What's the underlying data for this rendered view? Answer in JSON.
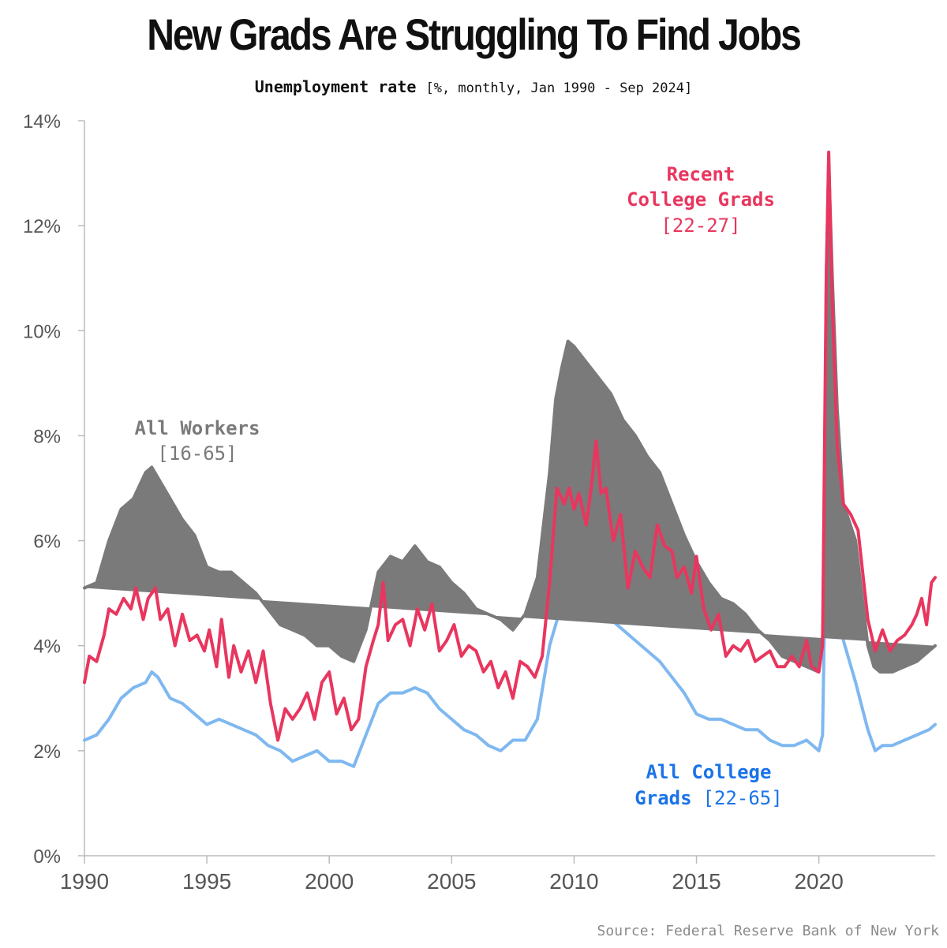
{
  "title": "New Grads Are Struggling To Find Jobs",
  "subtitle": {
    "main": "Unemployment rate",
    "detail": "[%, monthly, Jan 1990 - Sep 2024]"
  },
  "source": "Source: Federal Reserve Bank of New York",
  "chart_data": {
    "type": "line",
    "title": "New Grads Are Struggling To Find Jobs",
    "ylabel": "Unemployment rate",
    "xlabel": "",
    "xlim": [
      1990,
      2024.75
    ],
    "ylim": [
      0,
      14
    ],
    "x_ticks": [
      1990,
      1995,
      2000,
      2005,
      2010,
      2015,
      2020
    ],
    "x_tick_labels": [
      "1990",
      "1995",
      "2000",
      "2005",
      "2010",
      "2015",
      "2020"
    ],
    "y_ticks": [
      0,
      2,
      4,
      6,
      8,
      10,
      12,
      14
    ],
    "y_tick_labels": [
      "0%",
      "2%",
      "4%",
      "6%",
      "8%",
      "10%",
      "12%",
      "14%"
    ],
    "series": [
      {
        "name": "All Workers",
        "range": "[16-65]",
        "color": "#7a7a7a",
        "points": [
          [
            1990.0,
            5.1
          ],
          [
            1990.5,
            5.2
          ],
          [
            1991.0,
            6.0
          ],
          [
            1991.5,
            6.6
          ],
          [
            1992.0,
            6.8
          ],
          [
            1992.5,
            7.3
          ],
          [
            1992.75,
            7.4
          ],
          [
            1993.0,
            7.2
          ],
          [
            1993.5,
            6.8
          ],
          [
            1994.0,
            6.4
          ],
          [
            1994.5,
            6.1
          ],
          [
            1995.0,
            5.5
          ],
          [
            1995.5,
            5.4
          ],
          [
            1996.0,
            5.4
          ],
          [
            1996.5,
            5.2
          ],
          [
            1997.0,
            5.0
          ],
          [
            1997.5,
            4.7
          ],
          [
            1998.0,
            4.4
          ],
          [
            1998.5,
            4.3
          ],
          [
            1999.0,
            4.2
          ],
          [
            1999.5,
            4.0
          ],
          [
            2000.0,
            4.0
          ],
          [
            2000.5,
            3.8
          ],
          [
            2001.0,
            3.7
          ],
          [
            2001.5,
            4.3
          ],
          [
            2002.0,
            5.4
          ],
          [
            2002.5,
            5.7
          ],
          [
            2003.0,
            5.6
          ],
          [
            2003.5,
            5.9
          ],
          [
            2004.0,
            5.6
          ],
          [
            2004.5,
            5.5
          ],
          [
            2005.0,
            5.2
          ],
          [
            2005.5,
            5.0
          ],
          [
            2006.0,
            4.7
          ],
          [
            2006.5,
            4.6
          ],
          [
            2007.0,
            4.5
          ],
          [
            2007.5,
            4.3
          ],
          [
            2008.0,
            4.6
          ],
          [
            2008.5,
            5.3
          ],
          [
            2009.0,
            7.3
          ],
          [
            2009.25,
            8.7
          ],
          [
            2009.5,
            9.3
          ],
          [
            2009.75,
            9.8
          ],
          [
            2010.0,
            9.7
          ],
          [
            2010.5,
            9.4
          ],
          [
            2011.0,
            9.1
          ],
          [
            2011.5,
            8.8
          ],
          [
            2012.0,
            8.3
          ],
          [
            2012.5,
            8.0
          ],
          [
            2013.0,
            7.6
          ],
          [
            2013.5,
            7.3
          ],
          [
            2014.0,
            6.7
          ],
          [
            2014.5,
            6.1
          ],
          [
            2015.0,
            5.6
          ],
          [
            2015.5,
            5.2
          ],
          [
            2016.0,
            4.9
          ],
          [
            2016.5,
            4.8
          ],
          [
            2017.0,
            4.6
          ],
          [
            2017.5,
            4.3
          ],
          [
            2018.0,
            4.1
          ],
          [
            2018.5,
            3.8
          ],
          [
            2019.0,
            3.7
          ],
          [
            2019.5,
            3.6
          ],
          [
            2020.0,
            3.5
          ],
          [
            2020.2,
            4.4
          ],
          [
            2020.3,
            11.0
          ],
          [
            2020.4,
            13.2
          ],
          [
            2020.55,
            11.0
          ],
          [
            2020.75,
            8.5
          ],
          [
            2021.0,
            6.7
          ],
          [
            2021.5,
            6.0
          ],
          [
            2022.0,
            4.0
          ],
          [
            2022.25,
            3.6
          ],
          [
            2022.5,
            3.5
          ],
          [
            2023.0,
            3.5
          ],
          [
            2023.5,
            3.6
          ],
          [
            2024.0,
            3.7
          ],
          [
            2024.5,
            3.9
          ],
          [
            2024.75,
            4.0
          ]
        ]
      },
      {
        "name": "Recent College Grads",
        "range": "[22-27]",
        "color": "#e8365f",
        "points": [
          [
            1990.0,
            3.3
          ],
          [
            1990.2,
            3.8
          ],
          [
            1990.5,
            3.7
          ],
          [
            1990.8,
            4.2
          ],
          [
            1991.0,
            4.7
          ],
          [
            1991.3,
            4.6
          ],
          [
            1991.6,
            4.9
          ],
          [
            1991.9,
            4.7
          ],
          [
            1992.1,
            5.1
          ],
          [
            1992.4,
            4.5
          ],
          [
            1992.6,
            4.9
          ],
          [
            1992.9,
            5.1
          ],
          [
            1993.1,
            4.5
          ],
          [
            1993.4,
            4.7
          ],
          [
            1993.7,
            4.0
          ],
          [
            1994.0,
            4.6
          ],
          [
            1994.3,
            4.1
          ],
          [
            1994.6,
            4.2
          ],
          [
            1994.9,
            3.9
          ],
          [
            1995.1,
            4.3
          ],
          [
            1995.4,
            3.6
          ],
          [
            1995.6,
            4.5
          ],
          [
            1995.9,
            3.4
          ],
          [
            1996.1,
            4.0
          ],
          [
            1996.4,
            3.5
          ],
          [
            1996.7,
            3.9
          ],
          [
            1997.0,
            3.3
          ],
          [
            1997.3,
            3.9
          ],
          [
            1997.6,
            2.9
          ],
          [
            1997.9,
            2.2
          ],
          [
            1998.2,
            2.8
          ],
          [
            1998.5,
            2.6
          ],
          [
            1998.8,
            2.8
          ],
          [
            1999.1,
            3.1
          ],
          [
            1999.4,
            2.6
          ],
          [
            1999.7,
            3.3
          ],
          [
            2000.0,
            3.5
          ],
          [
            2000.3,
            2.7
          ],
          [
            2000.6,
            3.0
          ],
          [
            2000.9,
            2.4
          ],
          [
            2001.2,
            2.6
          ],
          [
            2001.5,
            3.6
          ],
          [
            2001.8,
            4.1
          ],
          [
            2002.0,
            4.4
          ],
          [
            2002.2,
            5.2
          ],
          [
            2002.4,
            4.1
          ],
          [
            2002.7,
            4.4
          ],
          [
            2003.0,
            4.5
          ],
          [
            2003.3,
            4.0
          ],
          [
            2003.6,
            4.7
          ],
          [
            2003.9,
            4.3
          ],
          [
            2004.2,
            4.8
          ],
          [
            2004.5,
            3.9
          ],
          [
            2004.8,
            4.1
          ],
          [
            2005.1,
            4.4
          ],
          [
            2005.4,
            3.8
          ],
          [
            2005.7,
            4.0
          ],
          [
            2006.0,
            3.9
          ],
          [
            2006.3,
            3.5
          ],
          [
            2006.6,
            3.7
          ],
          [
            2006.9,
            3.2
          ],
          [
            2007.2,
            3.5
          ],
          [
            2007.5,
            3.0
          ],
          [
            2007.8,
            3.7
          ],
          [
            2008.1,
            3.6
          ],
          [
            2008.4,
            3.4
          ],
          [
            2008.7,
            3.8
          ],
          [
            2009.0,
            5.2
          ],
          [
            2009.3,
            7.0
          ],
          [
            2009.6,
            6.7
          ],
          [
            2009.8,
            7.0
          ],
          [
            2010.0,
            6.6
          ],
          [
            2010.2,
            6.9
          ],
          [
            2010.5,
            6.3
          ],
          [
            2010.7,
            7.0
          ],
          [
            2010.9,
            7.9
          ],
          [
            2011.1,
            6.9
          ],
          [
            2011.3,
            7.0
          ],
          [
            2011.6,
            6.0
          ],
          [
            2011.9,
            6.5
          ],
          [
            2012.2,
            5.1
          ],
          [
            2012.5,
            5.8
          ],
          [
            2012.8,
            5.5
          ],
          [
            2013.1,
            5.3
          ],
          [
            2013.4,
            6.3
          ],
          [
            2013.7,
            5.9
          ],
          [
            2014.0,
            5.8
          ],
          [
            2014.2,
            5.3
          ],
          [
            2014.5,
            5.5
          ],
          [
            2014.8,
            5.0
          ],
          [
            2015.0,
            5.7
          ],
          [
            2015.3,
            4.7
          ],
          [
            2015.6,
            4.3
          ],
          [
            2015.9,
            4.6
          ],
          [
            2016.2,
            3.8
          ],
          [
            2016.5,
            4.0
          ],
          [
            2016.8,
            3.9
          ],
          [
            2017.1,
            4.1
          ],
          [
            2017.4,
            3.7
          ],
          [
            2017.7,
            3.8
          ],
          [
            2018.0,
            3.9
          ],
          [
            2018.3,
            3.6
          ],
          [
            2018.6,
            3.6
          ],
          [
            2018.9,
            3.8
          ],
          [
            2019.2,
            3.6
          ],
          [
            2019.5,
            4.1
          ],
          [
            2019.7,
            3.6
          ],
          [
            2020.0,
            3.5
          ],
          [
            2020.15,
            4.0
          ],
          [
            2020.3,
            11.0
          ],
          [
            2020.4,
            13.4
          ],
          [
            2020.55,
            10.5
          ],
          [
            2020.75,
            7.8
          ],
          [
            2021.0,
            6.7
          ],
          [
            2021.3,
            6.5
          ],
          [
            2021.6,
            6.2
          ],
          [
            2022.0,
            4.5
          ],
          [
            2022.3,
            3.9
          ],
          [
            2022.6,
            4.3
          ],
          [
            2022.9,
            3.9
          ],
          [
            2023.2,
            4.1
          ],
          [
            2023.5,
            4.2
          ],
          [
            2023.8,
            4.4
          ],
          [
            2024.0,
            4.6
          ],
          [
            2024.2,
            4.9
          ],
          [
            2024.4,
            4.4
          ],
          [
            2024.6,
            5.2
          ],
          [
            2024.75,
            5.3
          ]
        ]
      },
      {
        "name": "All College Grads",
        "range": "[22-65]",
        "color": "#7fb8f0",
        "points": [
          [
            1990.0,
            2.2
          ],
          [
            1990.5,
            2.3
          ],
          [
            1991.0,
            2.6
          ],
          [
            1991.5,
            3.0
          ],
          [
            1992.0,
            3.2
          ],
          [
            1992.5,
            3.3
          ],
          [
            1992.75,
            3.5
          ],
          [
            1993.0,
            3.4
          ],
          [
            1993.5,
            3.0
          ],
          [
            1994.0,
            2.9
          ],
          [
            1994.5,
            2.7
          ],
          [
            1995.0,
            2.5
          ],
          [
            1995.5,
            2.6
          ],
          [
            1996.0,
            2.5
          ],
          [
            1996.5,
            2.4
          ],
          [
            1997.0,
            2.3
          ],
          [
            1997.5,
            2.1
          ],
          [
            1998.0,
            2.0
          ],
          [
            1998.5,
            1.8
          ],
          [
            1999.0,
            1.9
          ],
          [
            1999.5,
            2.0
          ],
          [
            2000.0,
            1.8
          ],
          [
            2000.5,
            1.8
          ],
          [
            2001.0,
            1.7
          ],
          [
            2001.5,
            2.3
          ],
          [
            2002.0,
            2.9
          ],
          [
            2002.5,
            3.1
          ],
          [
            2003.0,
            3.1
          ],
          [
            2003.5,
            3.2
          ],
          [
            2004.0,
            3.1
          ],
          [
            2004.5,
            2.8
          ],
          [
            2005.0,
            2.6
          ],
          [
            2005.5,
            2.4
          ],
          [
            2006.0,
            2.3
          ],
          [
            2006.5,
            2.1
          ],
          [
            2007.0,
            2.0
          ],
          [
            2007.5,
            2.2
          ],
          [
            2008.0,
            2.2
          ],
          [
            2008.5,
            2.6
          ],
          [
            2009.0,
            4.0
          ],
          [
            2009.5,
            4.8
          ],
          [
            2010.0,
            5.1
          ],
          [
            2010.5,
            4.7
          ],
          [
            2011.0,
            4.8
          ],
          [
            2011.5,
            4.5
          ],
          [
            2012.0,
            4.3
          ],
          [
            2012.5,
            4.1
          ],
          [
            2013.0,
            3.9
          ],
          [
            2013.5,
            3.7
          ],
          [
            2014.0,
            3.4
          ],
          [
            2014.5,
            3.1
          ],
          [
            2015.0,
            2.7
          ],
          [
            2015.5,
            2.6
          ],
          [
            2016.0,
            2.6
          ],
          [
            2016.5,
            2.5
          ],
          [
            2017.0,
            2.4
          ],
          [
            2017.5,
            2.4
          ],
          [
            2018.0,
            2.2
          ],
          [
            2018.5,
            2.1
          ],
          [
            2019.0,
            2.1
          ],
          [
            2019.5,
            2.2
          ],
          [
            2020.0,
            2.0
          ],
          [
            2020.15,
            2.3
          ],
          [
            2020.3,
            6.5
          ],
          [
            2020.4,
            8.1
          ],
          [
            2020.55,
            7.0
          ],
          [
            2020.75,
            5.0
          ],
          [
            2021.0,
            4.1
          ],
          [
            2021.5,
            3.3
          ],
          [
            2022.0,
            2.4
          ],
          [
            2022.3,
            2.0
          ],
          [
            2022.6,
            2.1
          ],
          [
            2023.0,
            2.1
          ],
          [
            2023.5,
            2.2
          ],
          [
            2024.0,
            2.3
          ],
          [
            2024.5,
            2.4
          ],
          [
            2024.75,
            2.5
          ]
        ]
      }
    ]
  },
  "colors": {
    "all_workers": "#7a7a7a",
    "recent_grads": "#e8365f",
    "recent_grads_label": "#e8365f",
    "college_grads": "#7fb8f0",
    "college_grads_label": "#1a73e8",
    "axis": "#bbbbbb"
  }
}
